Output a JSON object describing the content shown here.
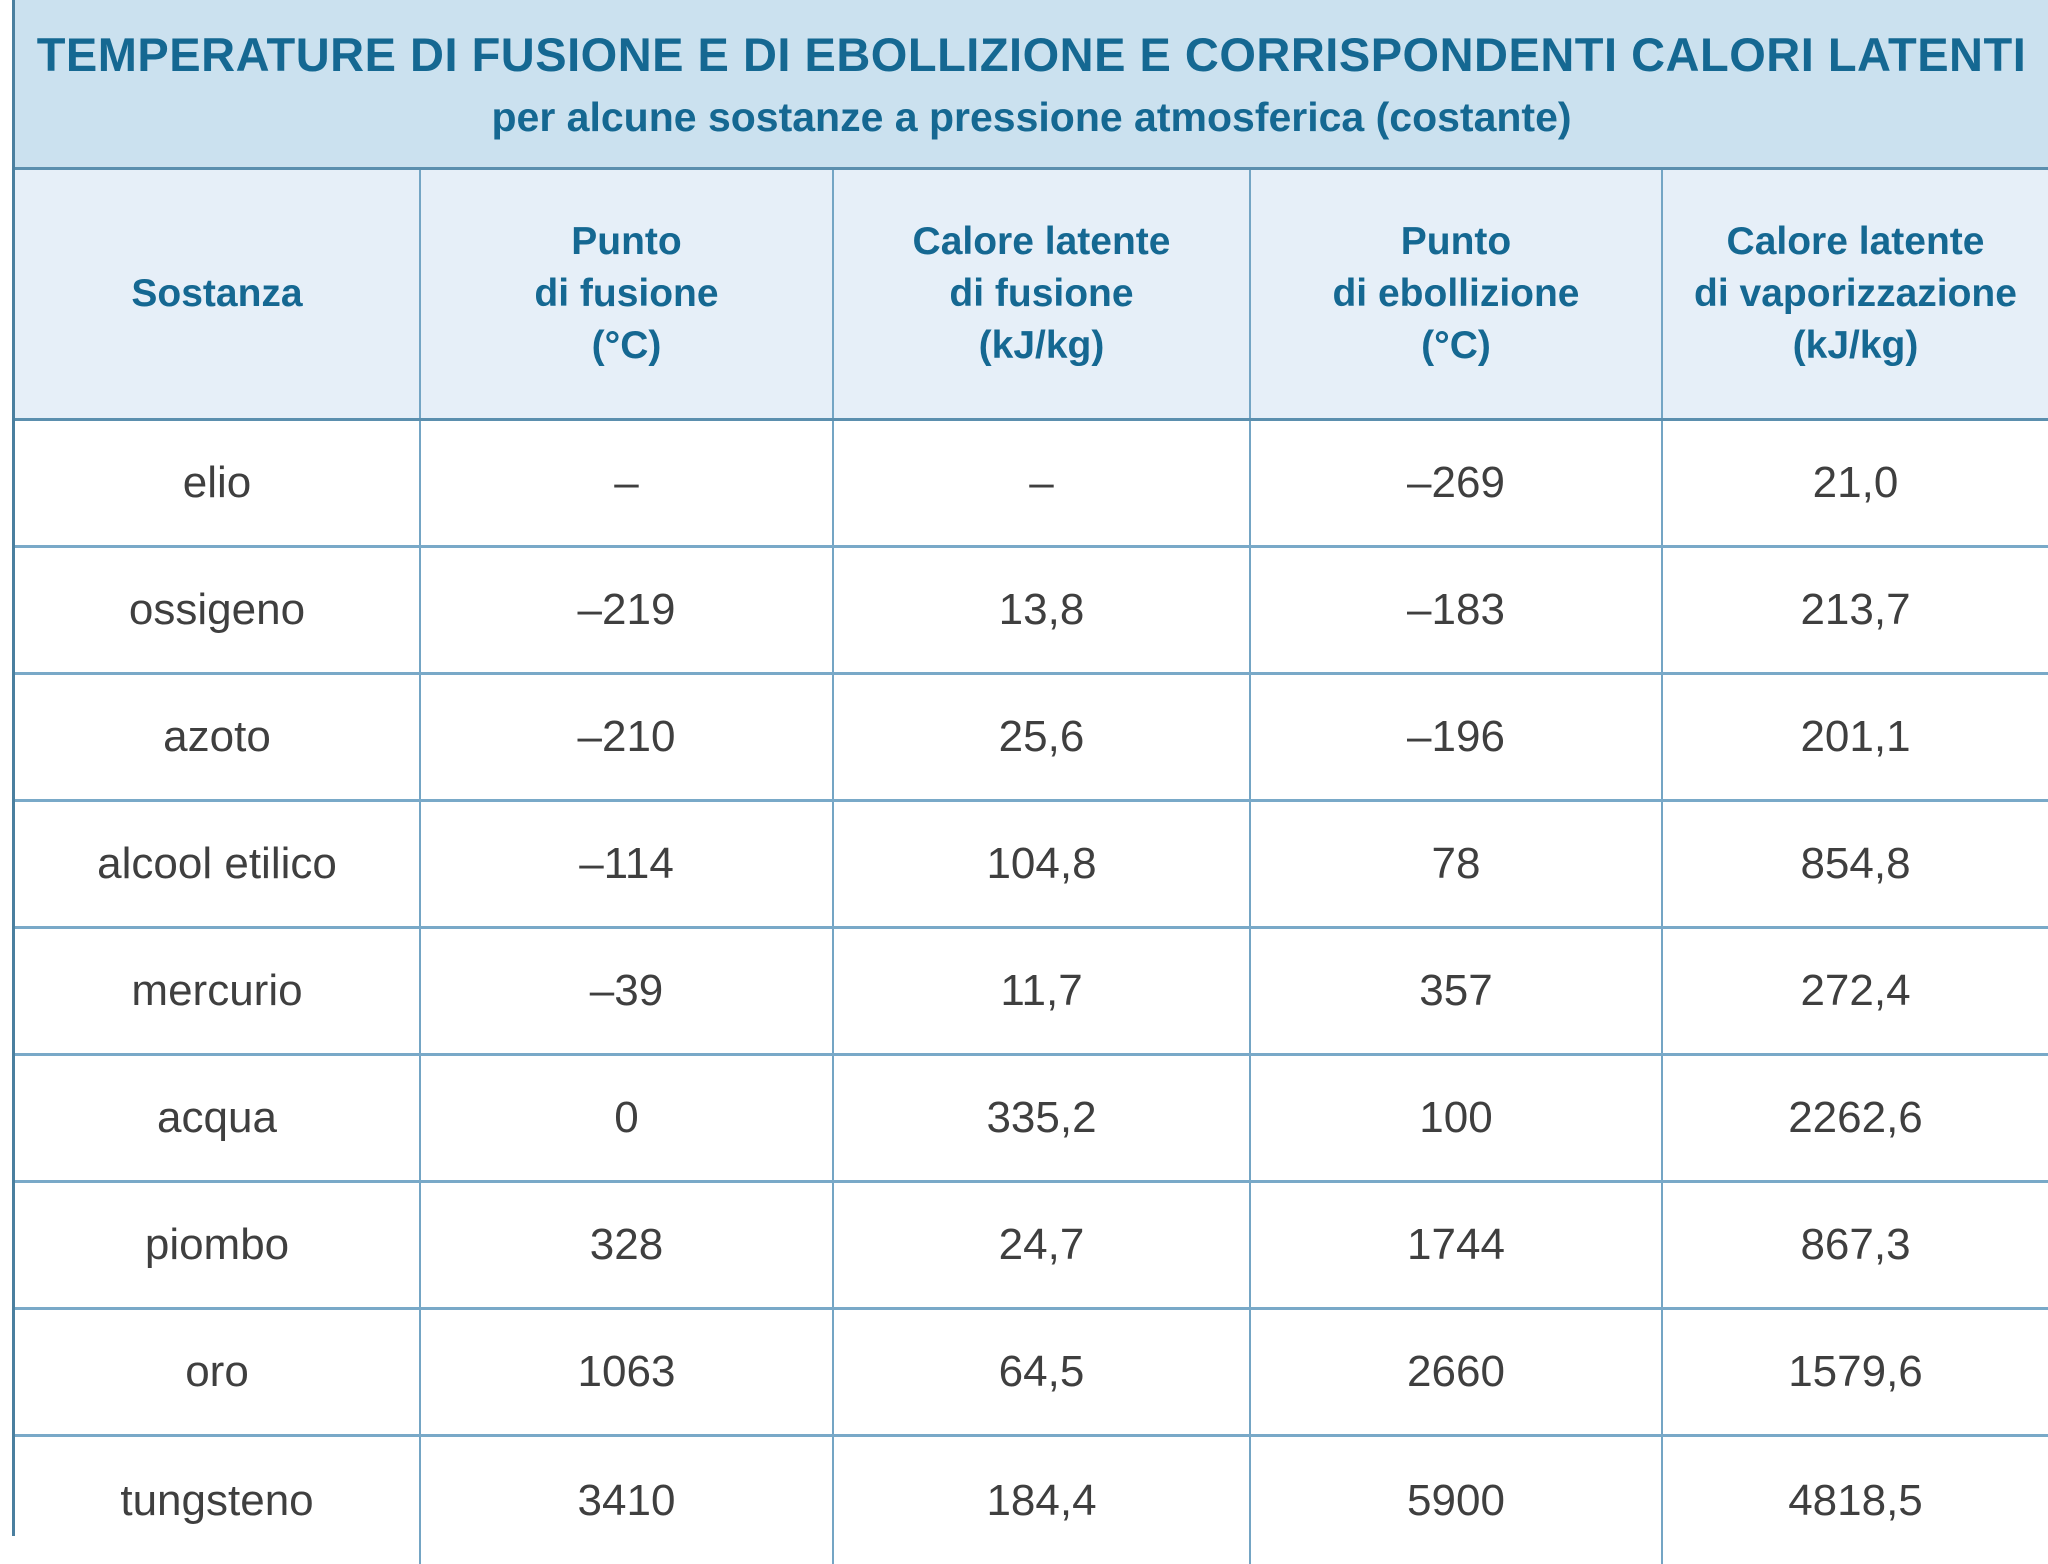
{
  "table": {
    "title": "TEMPERATURE DI FUSIONE E DI EBOLLIZIONE E CORRISPONDENTI CALORI LATENTI",
    "subtitle": "per alcune sostanze a pressione atmosferica (costante)",
    "columns": [
      [
        "Sostanza"
      ],
      [
        "Punto",
        "di fusione",
        "(°C)"
      ],
      [
        "Calore latente",
        "di fusione",
        "(kJ/kg)"
      ],
      [
        "Punto",
        "di ebollizione",
        "(°C)"
      ],
      [
        "Calore latente",
        "di vaporizzazione",
        "(kJ/kg)"
      ]
    ],
    "rows": [
      [
        "elio",
        "–",
        "–",
        "–269",
        "21,0"
      ],
      [
        "ossigeno",
        "–219",
        "13,8",
        "–183",
        "213,7"
      ],
      [
        "azoto",
        "–210",
        "25,6",
        "–196",
        "201,1"
      ],
      [
        "alcool etilico",
        "–114",
        "104,8",
        "78",
        "854,8"
      ],
      [
        "mercurio",
        "–39",
        "11,7",
        "357",
        "272,4"
      ],
      [
        "acqua",
        "0",
        "335,2",
        "100",
        "2262,6"
      ],
      [
        "piombo",
        "328",
        "24,7",
        "1744",
        "867,3"
      ],
      [
        "oro",
        "1063",
        "64,5",
        "2660",
        "1579,6"
      ],
      [
        "tungsteno",
        "3410",
        "184,4",
        "5900",
        "4818,5"
      ]
    ],
    "colors": {
      "title_text": "#156892",
      "title_bg": "#cbe1ef",
      "header_bg": "#e6eff8",
      "border": "#74a5c4",
      "row_text": "#3f3f3f"
    }
  }
}
